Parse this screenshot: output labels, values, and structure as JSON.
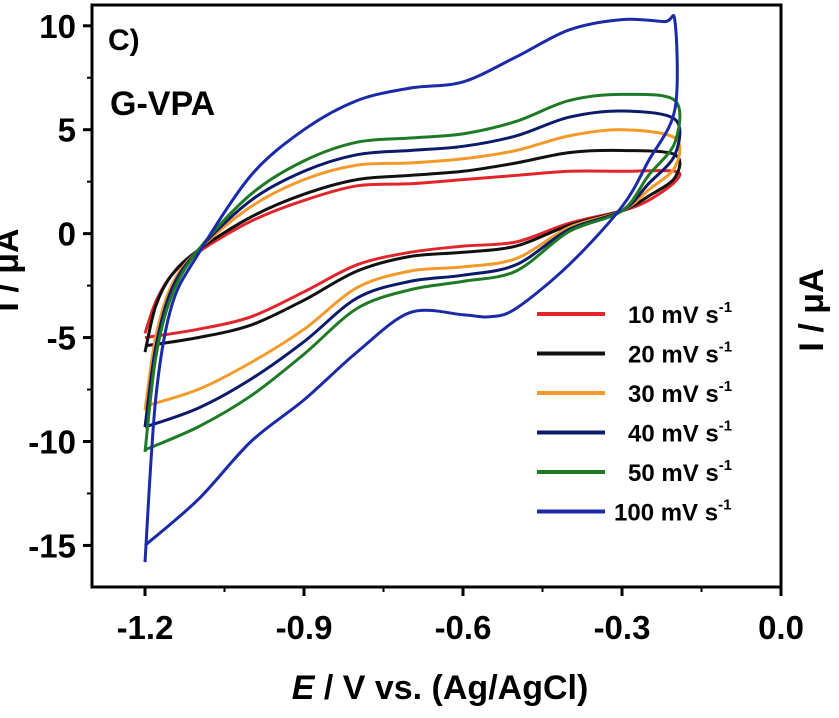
{
  "panel": {
    "letter": "C)",
    "sample": "G-VPA"
  },
  "chart_data": {
    "type": "line",
    "xlabel_italic": "E",
    "xlabel_rest": " / V vs. (Ag/AgCl)",
    "ylabel_left": "I / μA",
    "ylabel_right": "I / μA",
    "xlim": [
      -1.3,
      0.0
    ],
    "ylim": [
      -17,
      11
    ],
    "x_ticks": [
      "-1.2",
      "-0.9",
      "-0.6",
      "-0.3",
      "0.0"
    ],
    "x_tick_values": [
      -1.2,
      -0.9,
      -0.6,
      -0.3,
      0.0
    ],
    "y_ticks": [
      "10",
      "5",
      "0",
      "-5",
      "-10",
      "-15"
    ],
    "y_tick_values": [
      10,
      5,
      0,
      -5,
      -10,
      -15
    ],
    "legend_position": "bottom-right",
    "series": [
      {
        "name": "10 mV s",
        "exp": "-1",
        "color": "#e0262b",
        "x": [
          -1.2,
          -1.18,
          -1.15,
          -1.1,
          -1.0,
          -0.9,
          -0.8,
          -0.7,
          -0.6,
          -0.5,
          -0.4,
          -0.3,
          -0.2,
          -0.2,
          -0.25,
          -0.3,
          -0.4,
          -0.5,
          -0.6,
          -0.7,
          -0.8,
          -0.9,
          -1.0,
          -1.1,
          -1.2
        ],
        "y": [
          -4.8,
          -3.3,
          -2.0,
          -0.9,
          0.6,
          1.6,
          2.3,
          2.4,
          2.6,
          2.8,
          3.0,
          3.0,
          3.0,
          2.5,
          1.6,
          1.1,
          0.5,
          -0.4,
          -0.6,
          -0.9,
          -1.5,
          -2.8,
          -4.0,
          -4.6,
          -5.0
        ]
      },
      {
        "name": "20 mV s",
        "exp": "-1",
        "color": "#111111",
        "x": [
          -1.2,
          -1.18,
          -1.15,
          -1.1,
          -1.0,
          -0.9,
          -0.8,
          -0.7,
          -0.6,
          -0.5,
          -0.4,
          -0.3,
          -0.2,
          -0.2,
          -0.25,
          -0.3,
          -0.4,
          -0.5,
          -0.6,
          -0.7,
          -0.8,
          -0.9,
          -1.0,
          -1.1,
          -1.2
        ],
        "y": [
          -5.7,
          -3.5,
          -2.0,
          -0.8,
          0.8,
          1.9,
          2.6,
          2.8,
          3.0,
          3.4,
          3.9,
          4.0,
          3.8,
          2.7,
          1.8,
          1.1,
          0.4,
          -0.6,
          -0.9,
          -1.1,
          -1.8,
          -3.2,
          -4.4,
          -5.0,
          -5.4
        ]
      },
      {
        "name": "30 mV s",
        "exp": "-1",
        "color": "#f39a2b",
        "x": [
          -1.2,
          -1.18,
          -1.15,
          -1.1,
          -1.0,
          -0.9,
          -0.8,
          -0.7,
          -0.6,
          -0.5,
          -0.4,
          -0.3,
          -0.2,
          -0.2,
          -0.25,
          -0.3,
          -0.4,
          -0.5,
          -0.6,
          -0.7,
          -0.8,
          -0.9,
          -1.0,
          -1.1,
          -1.2
        ],
        "y": [
          -8.5,
          -5.0,
          -2.5,
          -0.8,
          1.3,
          2.6,
          3.3,
          3.4,
          3.6,
          4.0,
          4.7,
          5.0,
          4.6,
          3.2,
          2.1,
          1.1,
          0.3,
          -1.2,
          -1.6,
          -1.8,
          -2.6,
          -4.6,
          -6.2,
          -7.5,
          -8.3
        ]
      },
      {
        "name": "40 mV s",
        "exp": "-1",
        "color": "#0c1a6b",
        "x": [
          -1.2,
          -1.18,
          -1.15,
          -1.1,
          -1.0,
          -0.9,
          -0.8,
          -0.7,
          -0.6,
          -0.5,
          -0.4,
          -0.3,
          -0.2,
          -0.2,
          -0.25,
          -0.3,
          -0.4,
          -0.5,
          -0.6,
          -0.7,
          -0.8,
          -0.9,
          -1.0,
          -1.1,
          -1.2
        ],
        "y": [
          -9.3,
          -5.5,
          -2.7,
          -0.8,
          1.6,
          3.0,
          3.8,
          4.0,
          4.2,
          4.7,
          5.6,
          5.9,
          5.5,
          3.8,
          2.4,
          1.1,
          0.2,
          -1.5,
          -2.0,
          -2.3,
          -3.1,
          -5.2,
          -7.0,
          -8.4,
          -9.3
        ]
      },
      {
        "name": "50 mV s",
        "exp": "-1",
        "color": "#1f7a25",
        "x": [
          -1.2,
          -1.18,
          -1.15,
          -1.1,
          -1.0,
          -0.9,
          -0.8,
          -0.7,
          -0.6,
          -0.5,
          -0.4,
          -0.3,
          -0.2,
          -0.2,
          -0.25,
          -0.3,
          -0.4,
          -0.5,
          -0.6,
          -0.7,
          -0.8,
          -0.9,
          -1.0,
          -1.1,
          -1.2
        ],
        "y": [
          -10.5,
          -6.0,
          -3.0,
          -0.8,
          1.9,
          3.5,
          4.4,
          4.6,
          4.8,
          5.4,
          6.4,
          6.7,
          6.4,
          4.4,
          2.8,
          1.1,
          0.1,
          -1.8,
          -2.3,
          -2.7,
          -3.6,
          -5.8,
          -7.8,
          -9.3,
          -10.4
        ]
      },
      {
        "name": "100 mV s",
        "exp": "-1",
        "color": "#1a2aa8",
        "x": [
          -1.2,
          -1.18,
          -1.15,
          -1.1,
          -1.0,
          -0.9,
          -0.8,
          -0.7,
          -0.6,
          -0.5,
          -0.4,
          -0.3,
          -0.22,
          -0.2,
          -0.2,
          -0.25,
          -0.3,
          -0.4,
          -0.5,
          -0.55,
          -0.6,
          -0.7,
          -0.8,
          -0.9,
          -1.0,
          -1.1,
          -1.2
        ],
        "y": [
          -15.8,
          -8.0,
          -3.5,
          -1.0,
          2.8,
          5.0,
          6.4,
          7.0,
          7.3,
          8.5,
          9.8,
          10.3,
          10.2,
          10.2,
          6.0,
          3.5,
          1.3,
          -1.5,
          -3.6,
          -4.0,
          -3.9,
          -3.8,
          -5.7,
          -8.0,
          -10.0,
          -12.8,
          -15.0
        ]
      }
    ]
  }
}
